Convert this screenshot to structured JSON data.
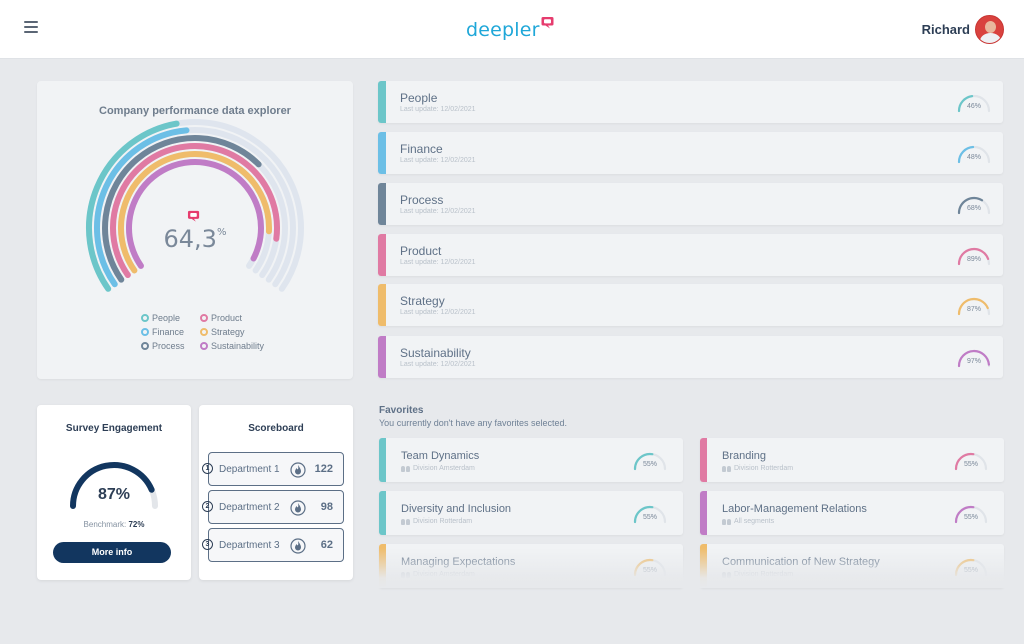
{
  "header": {
    "logo_text": "deepler",
    "user_name": "Richard"
  },
  "explorer": {
    "title": "Company performance data explorer",
    "value": "64,3",
    "unit": "%",
    "legend": [
      {
        "label": "People",
        "color": "#6cc6c9"
      },
      {
        "label": "Product",
        "color": "#e07aa3"
      },
      {
        "label": "Finance",
        "color": "#6cbfe6"
      },
      {
        "label": "Strategy",
        "color": "#efbc6b"
      },
      {
        "label": "Process",
        "color": "#6f8599"
      },
      {
        "label": "Sustainability",
        "color": "#c07cc6"
      }
    ]
  },
  "survey": {
    "title": "Survey Engagement",
    "value": "87%",
    "fraction": 0.87,
    "benchmark_label": "Benchmark:",
    "benchmark_value": "72%",
    "button": "More info",
    "color": "#12365f"
  },
  "scoreboard": {
    "title": "Scoreboard",
    "rows": [
      {
        "rank": "1",
        "name": "Department 1",
        "score": "122"
      },
      {
        "rank": "2",
        "name": "Department 2",
        "score": "98"
      },
      {
        "rank": "3",
        "name": "Department 3",
        "score": "62"
      }
    ]
  },
  "categories": [
    {
      "name": "People",
      "update": "Last update: 12/02/2021",
      "value": "46%",
      "fraction": 0.46,
      "color": "#6cc6c9"
    },
    {
      "name": "Finance",
      "update": "Last update: 12/02/2021",
      "value": "48%",
      "fraction": 0.48,
      "color": "#6cbfe6"
    },
    {
      "name": "Process",
      "update": "Last update: 12/02/2021",
      "value": "68%",
      "fraction": 0.68,
      "color": "#6f8599"
    },
    {
      "name": "Product",
      "update": "Last update: 12/02/2021",
      "value": "89%",
      "fraction": 0.89,
      "color": "#e07aa3"
    },
    {
      "name": "Strategy",
      "update": "Last update: 12/02/2021",
      "value": "87%",
      "fraction": 0.87,
      "color": "#efbc6b"
    },
    {
      "name": "Sustainability",
      "update": "Last update: 12/02/2021",
      "value": "97%",
      "fraction": 0.97,
      "color": "#c07cc6"
    }
  ],
  "favorites": {
    "title": "Favorites",
    "subtitle": "You currently don't have any favorites selected.",
    "items": [
      {
        "name": "Team Dynamics",
        "sub": "Division Amsterdam",
        "value": "55%",
        "fraction": 0.55,
        "color": "#6cc6c9"
      },
      {
        "name": "Branding",
        "sub": "Division Rotterdam",
        "value": "55%",
        "fraction": 0.55,
        "color": "#e07aa3"
      },
      {
        "name": "Diversity and Inclusion",
        "sub": "Division Rotterdam",
        "value": "55%",
        "fraction": 0.55,
        "color": "#6cc6c9"
      },
      {
        "name": "Labor-Management Relations",
        "sub": "All segments",
        "value": "55%",
        "fraction": 0.55,
        "color": "#c07cc6"
      },
      {
        "name": "Managing Expectations",
        "sub": "Division Amsterdam",
        "value": "55%",
        "fraction": 0.55,
        "color": "#efbc6b"
      },
      {
        "name": "Communication of New Strategy",
        "sub": "Division Rotterdam",
        "value": "55%",
        "fraction": 0.55,
        "color": "#efbc6b"
      }
    ]
  },
  "icons": {
    "menu": "hamburger-menu-icon",
    "logo_mark": "speech-bubble-logo-icon",
    "flame": "flame-icon",
    "people": "people-icon"
  }
}
